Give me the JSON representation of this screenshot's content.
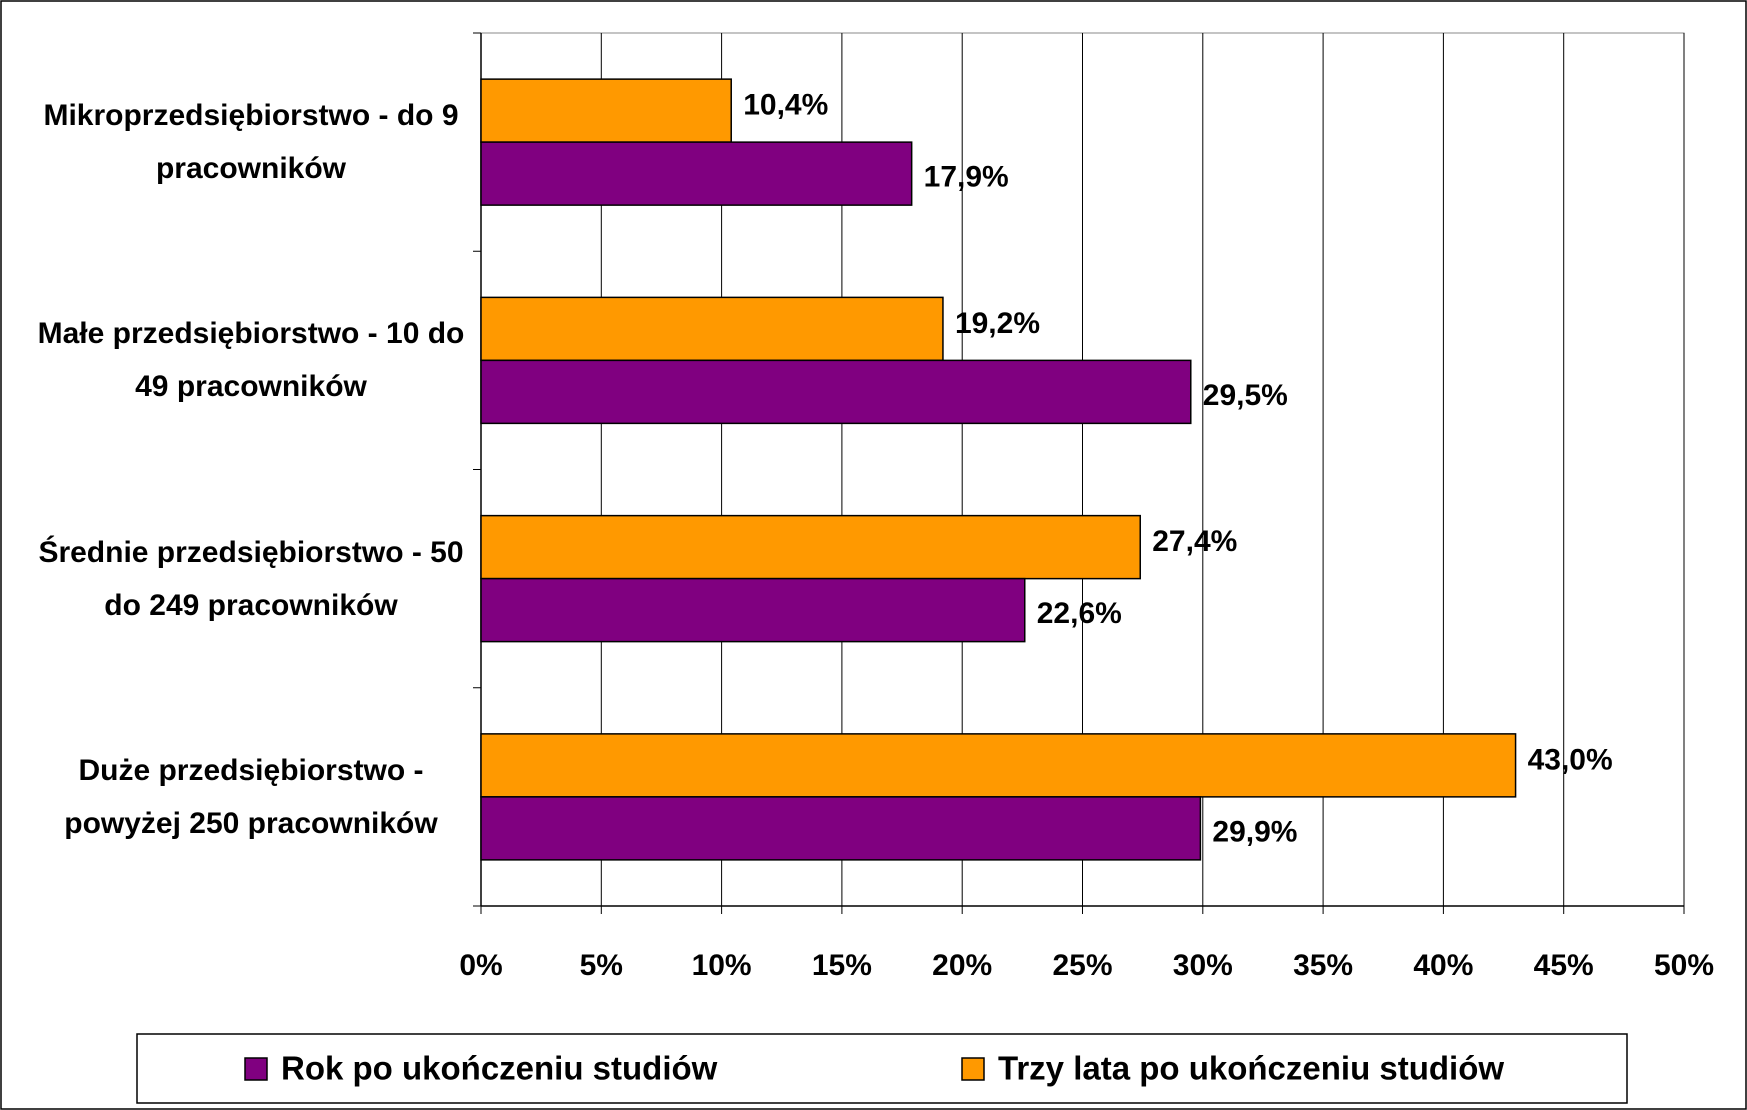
{
  "chart_data": {
    "type": "bar",
    "orientation": "horizontal",
    "categories": [
      "Mikroprzedsiębiorstwo - do 9 pracowników",
      "Małe przedsiębiorstwo - 10 do 49 pracowników",
      "Średnie przedsiębiorstwo - 50 do 249 pracowników",
      "Duże przedsiębiorstwo - powyżej 250 pracowników"
    ],
    "series": [
      {
        "name": "Rok po ukończeniu studiów",
        "color": "#800080",
        "values": [
          17.9,
          29.5,
          22.6,
          29.9
        ],
        "value_labels": [
          "17,9%",
          "29,5%",
          "22,6%",
          "29,9%"
        ]
      },
      {
        "name": "Trzy lata po ukończeniu studiów",
        "color": "#ff9900",
        "values": [
          10.4,
          19.2,
          27.4,
          43.0
        ],
        "value_labels": [
          "10,4%",
          "19,2%",
          "27,4%",
          "43,0%"
        ]
      }
    ],
    "xlim": [
      0,
      50
    ],
    "xticks": [
      {
        "value": 0,
        "label": "0%"
      },
      {
        "value": 5,
        "label": "5%"
      },
      {
        "value": 10,
        "label": "10%"
      },
      {
        "value": 15,
        "label": "15%"
      },
      {
        "value": 20,
        "label": "20%"
      },
      {
        "value": 25,
        "label": "25%"
      },
      {
        "value": 30,
        "label": "30%"
      },
      {
        "value": 35,
        "label": "35%"
      },
      {
        "value": 40,
        "label": "40%"
      },
      {
        "value": 45,
        "label": "45%"
      },
      {
        "value": 50,
        "label": "50%"
      }
    ],
    "grid": true,
    "legend": "bottom"
  }
}
